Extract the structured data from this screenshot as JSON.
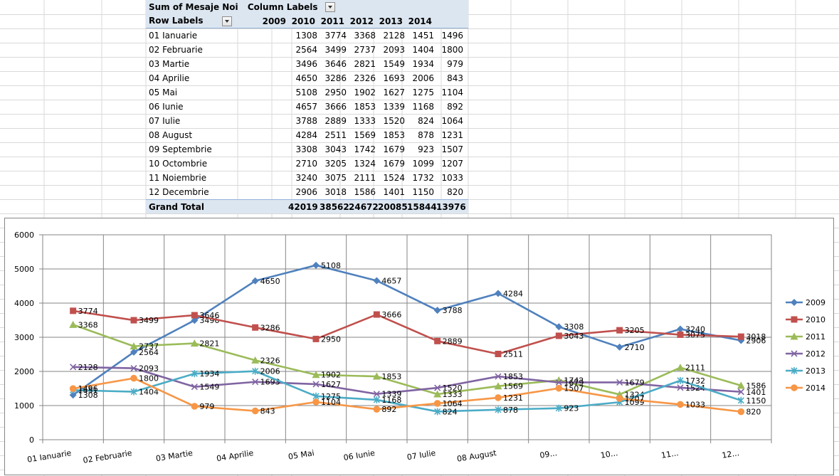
{
  "pivot": {
    "title": "Sum of Mesaje Noi",
    "column_labels": "Column Labels",
    "row_labels": "Row Labels",
    "years": [
      "2009",
      "2010",
      "2011",
      "2012",
      "2013",
      "2014"
    ],
    "rows": [
      {
        "label": "01 Ianuarie",
        "values": [
          "1308",
          "3774",
          "3368",
          "2128",
          "1451",
          "1496"
        ]
      },
      {
        "label": "02 Februarie",
        "values": [
          "2564",
          "3499",
          "2737",
          "2093",
          "1404",
          "1800"
        ]
      },
      {
        "label": "03 Martie",
        "values": [
          "3496",
          "3646",
          "2821",
          "1549",
          "1934",
          "979"
        ]
      },
      {
        "label": "04 Aprilie",
        "values": [
          "4650",
          "3286",
          "2326",
          "1693",
          "2006",
          "843"
        ]
      },
      {
        "label": "05 Mai",
        "values": [
          "5108",
          "2950",
          "1902",
          "1627",
          "1275",
          "1104"
        ]
      },
      {
        "label": "06 Iunie",
        "values": [
          "4657",
          "3666",
          "1853",
          "1339",
          "1168",
          "892"
        ]
      },
      {
        "label": "07 Iulie",
        "values": [
          "3788",
          "2889",
          "1333",
          "1520",
          "824",
          "1064"
        ]
      },
      {
        "label": "08 August",
        "values": [
          "4284",
          "2511",
          "1569",
          "1853",
          "878",
          "1231"
        ]
      },
      {
        "label": "09 Septembrie",
        "values": [
          "3308",
          "3043",
          "1742",
          "1679",
          "923",
          "1507"
        ]
      },
      {
        "label": "10 Octombrie",
        "values": [
          "2710",
          "3205",
          "1324",
          "1679",
          "1099",
          "1207"
        ]
      },
      {
        "label": "11 Noiembrie",
        "values": [
          "3240",
          "3075",
          "2111",
          "1524",
          "1732",
          "1033"
        ]
      },
      {
        "label": "12 Decembrie",
        "values": [
          "2906",
          "3018",
          "1586",
          "1401",
          "1150",
          "820"
        ]
      }
    ],
    "total_label": "Grand Total",
    "totals": [
      "42019",
      "38562",
      "24672",
      "20085",
      "15844",
      "13976"
    ]
  },
  "chart_data": {
    "type": "line",
    "categories": [
      "01 Ianuarie",
      "02 Februarie",
      "03 Martie",
      "04 Aprilie",
      "05 Mai",
      "06 Iunie",
      "07 Iulie",
      "08 August",
      "09...",
      "10...",
      "11...",
      "12..."
    ],
    "ylim": [
      0,
      6000
    ],
    "yticks": [
      0,
      1000,
      2000,
      3000,
      4000,
      5000,
      6000
    ],
    "grid": true,
    "legend": "right",
    "series": [
      {
        "name": "2009",
        "color": "#4f81bd",
        "marker": "diamond",
        "values": [
          1308,
          2564,
          3496,
          4650,
          5108,
          4657,
          3788,
          4284,
          3308,
          2710,
          3240,
          2906
        ]
      },
      {
        "name": "2010",
        "color": "#c0504d",
        "marker": "square",
        "values": [
          3774,
          3499,
          3646,
          3286,
          2950,
          3666,
          2889,
          2511,
          3043,
          3205,
          3075,
          3018
        ]
      },
      {
        "name": "2011",
        "color": "#9bbb59",
        "marker": "triangle",
        "values": [
          3368,
          2737,
          2821,
          2326,
          1902,
          1853,
          1333,
          1569,
          1742,
          1324,
          2111,
          1586
        ]
      },
      {
        "name": "2012",
        "color": "#8064a2",
        "marker": "x",
        "values": [
          2128,
          2093,
          1549,
          1693,
          1627,
          1339,
          1520,
          1853,
          1679,
          1679,
          1524,
          1401
        ]
      },
      {
        "name": "2013",
        "color": "#4bacc6",
        "marker": "star",
        "values": [
          1451,
          1404,
          1934,
          2006,
          1275,
          1168,
          824,
          878,
          923,
          1099,
          1732,
          1150
        ]
      },
      {
        "name": "2014",
        "color": "#f79646",
        "marker": "circle",
        "values": [
          1496,
          1800,
          979,
          843,
          1104,
          892,
          1064,
          1231,
          1507,
          1207,
          1033,
          820
        ]
      }
    ]
  }
}
